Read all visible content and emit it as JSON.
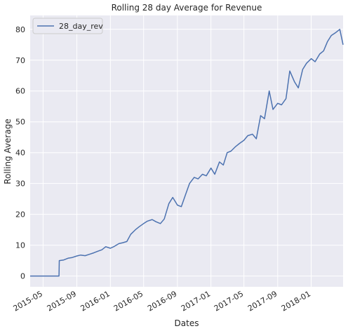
{
  "chart_data": {
    "type": "line",
    "title": "Rolling 28 day Average for Revenue",
    "xlabel": "Dates",
    "ylabel": "Rolling Average",
    "xlim": [
      "2015-03-15",
      "2018-04-27"
    ],
    "ylim": [
      -3.5,
      84.5
    ],
    "y_ticks": [
      0,
      10,
      20,
      30,
      40,
      50,
      60,
      70,
      80
    ],
    "x_ticks": [
      "2015-05",
      "2015-09",
      "2016-01",
      "2016-05",
      "2016-09",
      "2017-01",
      "2017-05",
      "2017-09",
      "2018-01"
    ],
    "grid": true,
    "background": "#eaeaf2",
    "legend_position": "top-left",
    "series": [
      {
        "name": "28_day_rev",
        "color": "#4c72b0",
        "x": [
          "2015-03-15",
          "2015-05-01",
          "2015-06-01",
          "2015-06-28",
          "2015-06-29",
          "2015-07-15",
          "2015-08-01",
          "2015-08-15",
          "2015-09-01",
          "2015-09-15",
          "2015-10-01",
          "2015-10-15",
          "2015-11-01",
          "2015-11-15",
          "2015-12-01",
          "2015-12-15",
          "2016-01-01",
          "2016-01-15",
          "2016-02-01",
          "2016-02-15",
          "2016-03-01",
          "2016-03-15",
          "2016-04-01",
          "2016-04-15",
          "2016-05-01",
          "2016-05-15",
          "2016-06-01",
          "2016-06-15",
          "2016-07-01",
          "2016-07-15",
          "2016-08-01",
          "2016-08-15",
          "2016-09-01",
          "2016-09-15",
          "2016-10-01",
          "2016-10-15",
          "2016-11-01",
          "2016-11-15",
          "2016-12-01",
          "2016-12-15",
          "2017-01-01",
          "2017-01-15",
          "2017-02-01",
          "2017-02-15",
          "2017-03-01",
          "2017-03-15",
          "2017-04-01",
          "2017-04-15",
          "2017-05-01",
          "2017-05-15",
          "2017-06-01",
          "2017-06-15",
          "2017-07-01",
          "2017-07-15",
          "2017-08-01",
          "2017-08-15",
          "2017-09-01",
          "2017-09-15",
          "2017-10-01",
          "2017-10-15",
          "2017-11-01",
          "2017-11-15",
          "2017-12-01",
          "2017-12-15",
          "2018-01-01",
          "2018-01-15",
          "2018-02-01",
          "2018-02-15",
          "2018-03-01",
          "2018-03-15",
          "2018-04-01",
          "2018-04-15",
          "2018-04-27"
        ],
        "values": [
          0,
          0,
          0,
          0,
          5,
          5.2,
          5.8,
          6,
          6.5,
          6.8,
          6.6,
          7,
          7.5,
          8,
          8.5,
          9.5,
          9,
          9.6,
          10.5,
          10.8,
          11.2,
          13.5,
          15,
          16,
          17,
          17.8,
          18.3,
          17.6,
          17,
          18.5,
          23.5,
          25.5,
          23,
          22.5,
          26.5,
          30,
          32,
          31.5,
          33,
          32.5,
          35,
          33,
          37,
          36,
          40,
          40.5,
          42,
          43,
          44,
          45.5,
          46,
          44.5,
          52,
          51,
          60,
          54,
          56,
          55.5,
          57.5,
          66.5,
          63,
          61,
          67,
          69,
          70.5,
          69.5,
          72,
          73,
          76,
          78,
          79,
          80,
          75
        ]
      }
    ]
  }
}
